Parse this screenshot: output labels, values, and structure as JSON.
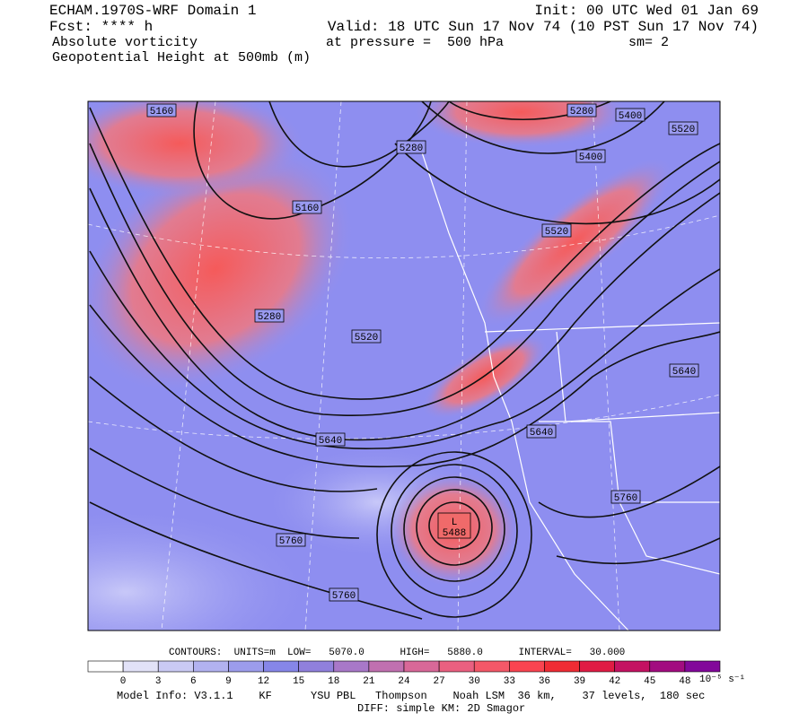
{
  "header": {
    "title": "ECHAM.1970S-WRF Domain 1",
    "init": "Init: 00 UTC Wed 01 Jan 69",
    "forecast": "Fcst: **** h",
    "valid": "Valid: 18 UTC Sun 17 Nov 74 (10 PST Sun 17 Nov 74)",
    "field": "Absolute vorticity",
    "pressure": "at pressure =  500 hPa",
    "smoothing": "sm= 2",
    "contour_field": "Geopotential Height at 500mb (m)"
  },
  "map": {
    "contour_labels": [
      5160,
      5280,
      5400,
      5520,
      5280,
      5400,
      5160,
      5520,
      5280,
      5520,
      5640,
      5640,
      5640,
      5760,
      5760,
      5760
    ],
    "low": {
      "label": "L",
      "value": 5488
    }
  },
  "footer": {
    "contours": "CONTOURS:  UNITS=m  LOW=   5070.0      HIGH=   5880.0      INTERVAL=   30.000",
    "colorbar_ticks": [
      0,
      3,
      6,
      9,
      12,
      15,
      18,
      21,
      24,
      27,
      30,
      33,
      36,
      39,
      42,
      45,
      48
    ],
    "colorbar_units": "10⁻⁵ s⁻¹",
    "model_info": "Model Info: V3.1.1    KF      YSU PBL   Thompson    Noah LSM  36 km,    37 levels,  180 sec",
    "diff": "DIFF: simple KM: 2D Smagor"
  }
}
